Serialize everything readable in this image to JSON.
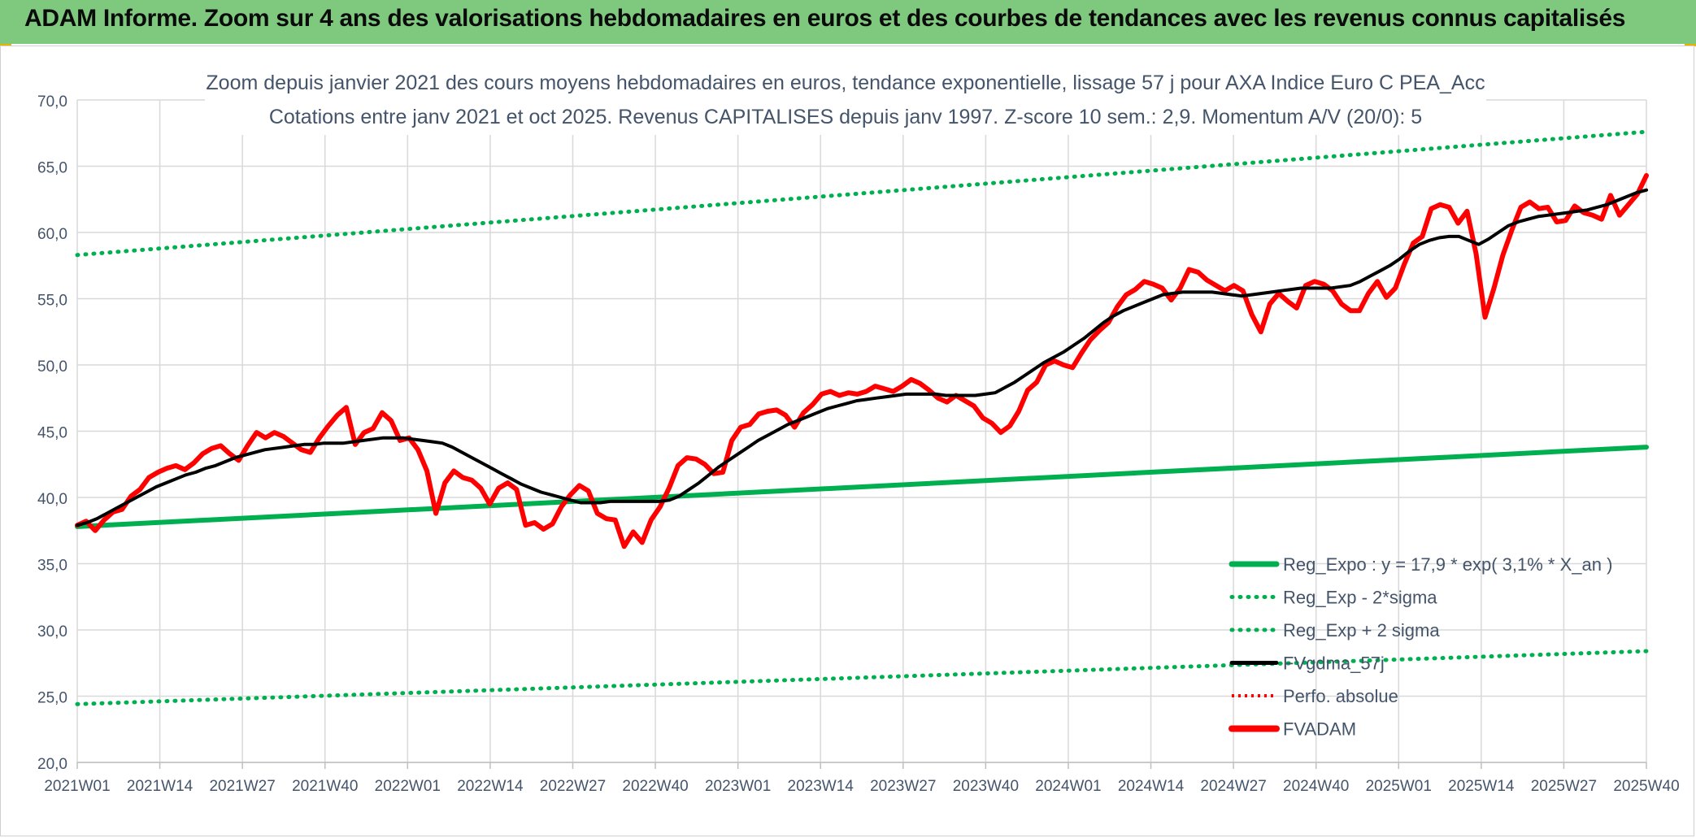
{
  "banner": {
    "title": "ADAM Informe. Zoom sur 4 ans des valorisations hebdomadaires en euros et des courbes de tendances avec les revenus connus capitalisés"
  },
  "colors": {
    "banner": "#7fc97f",
    "reg_expo": "#00b050",
    "sigma": "#00b050",
    "fvgdma": "#000000",
    "perfo": "#ff0000",
    "fvadam": "#ff0000",
    "grid": "#d9d9d9"
  },
  "chart_data": {
    "type": "line",
    "title": "Zoom depuis janvier 2021 des cours moyens hebdomadaires en euros, tendance exponentielle, lissage 57 j pour AXA Indice Euro C PEA_Acc",
    "subtitle": "Cotations entre janv 2021 et oct 2025. Revenus CAPITALISES depuis janv 1997. Z-score 10 sem.: 2,9. Momentum A/V (20/0): 5",
    "ylim": [
      20,
      70
    ],
    "yticks": [
      "70,0",
      "65,0",
      "60,0",
      "55,0",
      "50,0",
      "45,0",
      "40,0",
      "35,0",
      "30,0",
      "25,0",
      "20,0"
    ],
    "xticks": [
      "2021W01",
      "2021W14",
      "2021W27",
      "2021W40",
      "2022W01",
      "2022W14",
      "2022W27",
      "2022W40",
      "2023W01",
      "2023W14",
      "2023W27",
      "2023W40",
      "2024W01",
      "2024W14",
      "2024W27",
      "2024W40",
      "2025W01",
      "2025W14",
      "2025W27",
      "2025W40"
    ],
    "x_start": "2021W01",
    "x_end": "2025W40",
    "legend_placement": "bottom-right",
    "series": [
      {
        "name": "Reg_Expo : y = 17,9 * exp( 3,1% *  X_an )",
        "style": "solid",
        "values": [
          37.8,
          43.8
        ]
      },
      {
        "name": "Reg_Exp - 2*sigma",
        "style": "dotted",
        "values": [
          24.4,
          28.4
        ]
      },
      {
        "name": "Reg_Exp + 2 sigma",
        "style": "dotted",
        "values": [
          58.3,
          67.6
        ]
      },
      {
        "name": "FVgdma_57j",
        "style": "solid",
        "values": [
          37.9,
          38.1,
          38.4,
          38.8,
          39.2,
          39.6,
          40.0,
          40.4,
          40.8,
          41.1,
          41.4,
          41.7,
          41.9,
          42.2,
          42.4,
          42.7,
          43.0,
          43.2,
          43.4,
          43.6,
          43.7,
          43.8,
          43.9,
          44.0,
          44.0,
          44.1,
          44.1,
          44.1,
          44.2,
          44.3,
          44.4,
          44.5,
          44.5,
          44.5,
          44.4,
          44.3,
          44.2,
          44.1,
          43.8,
          43.4,
          43.0,
          42.6,
          42.2,
          41.8,
          41.4,
          41.0,
          40.7,
          40.4,
          40.2,
          40.0,
          39.8,
          39.6,
          39.6,
          39.6,
          39.7,
          39.7,
          39.7,
          39.7,
          39.7,
          39.7,
          39.8,
          40.1,
          40.6,
          41.1,
          41.7,
          42.3,
          42.8,
          43.3,
          43.8,
          44.3,
          44.7,
          45.1,
          45.5,
          45.8,
          46.1,
          46.4,
          46.7,
          46.9,
          47.1,
          47.3,
          47.4,
          47.5,
          47.6,
          47.7,
          47.8,
          47.8,
          47.8,
          47.8,
          47.7,
          47.7,
          47.7,
          47.7,
          47.8,
          47.9,
          48.3,
          48.7,
          49.2,
          49.7,
          50.2,
          50.6,
          51.0,
          51.5,
          52.0,
          52.6,
          53.2,
          53.7,
          54.1,
          54.4,
          54.7,
          55.0,
          55.3,
          55.4,
          55.5,
          55.5,
          55.5,
          55.5,
          55.4,
          55.3,
          55.2,
          55.3,
          55.4,
          55.5,
          55.6,
          55.7,
          55.8,
          55.8,
          55.8,
          55.8,
          55.9,
          56.0,
          56.3,
          56.7,
          57.1,
          57.5,
          58.0,
          58.6,
          59.1,
          59.4,
          59.6,
          59.7,
          59.7,
          59.4,
          59.1,
          59.5,
          60.0,
          60.5,
          60.8,
          61.0,
          61.2,
          61.3,
          61.4,
          61.5,
          61.6,
          61.7,
          61.9,
          62.1,
          62.4,
          62.7,
          63.0,
          63.2
        ]
      },
      {
        "name": "Perfo. absolue",
        "style": "dotted",
        "values": []
      },
      {
        "name": "FVADAM",
        "style": "solid",
        "values": [
          37.9,
          38.2,
          37.5,
          38.3,
          38.9,
          39.1,
          40.1,
          40.6,
          41.5,
          41.9,
          42.2,
          42.4,
          42.1,
          42.6,
          43.3,
          43.7,
          43.9,
          43.3,
          42.8,
          43.9,
          44.9,
          44.5,
          44.9,
          44.6,
          44.1,
          43.6,
          43.4,
          44.5,
          45.4,
          46.2,
          46.8,
          44.0,
          44.9,
          45.2,
          46.4,
          45.8,
          44.3,
          44.5,
          43.6,
          42.0,
          38.8,
          41.1,
          42.0,
          41.5,
          41.3,
          40.7,
          39.5,
          40.7,
          41.1,
          40.6,
          37.9,
          38.1,
          37.6,
          38.0,
          39.3,
          40.2,
          40.9,
          40.5,
          38.8,
          38.4,
          38.3,
          36.3,
          37.4,
          36.6,
          38.3,
          39.3,
          40.7,
          42.4,
          43.0,
          42.9,
          42.5,
          41.8,
          41.9,
          44.3,
          45.3,
          45.5,
          46.3,
          46.5,
          46.6,
          46.2,
          45.3,
          46.4,
          47.0,
          47.8,
          48.0,
          47.7,
          47.9,
          47.8,
          48.0,
          48.4,
          48.2,
          48.0,
          48.4,
          48.9,
          48.6,
          48.1,
          47.5,
          47.2,
          47.7,
          47.3,
          46.9,
          46.0,
          45.6,
          44.9,
          45.4,
          46.5,
          48.1,
          48.7,
          50.0,
          50.3,
          50.0,
          49.8,
          50.9,
          51.9,
          52.6,
          53.2,
          54.4,
          55.3,
          55.7,
          56.3,
          56.1,
          55.8,
          54.9,
          55.8,
          57.2,
          57.0,
          56.4,
          56.0,
          55.6,
          56.0,
          55.6,
          53.8,
          52.5,
          54.6,
          55.4,
          54.8,
          54.3,
          56.0,
          56.3,
          56.1,
          55.6,
          54.6,
          54.1,
          54.1,
          55.4,
          56.3,
          55.1,
          55.8,
          57.6,
          59.2,
          59.7,
          61.8,
          62.1,
          61.9,
          60.7,
          61.6,
          58.4,
          53.6,
          55.8,
          58.3,
          60.2,
          61.9,
          62.3,
          61.8,
          61.9,
          60.8,
          60.9,
          62.0,
          61.5,
          61.3,
          61.0,
          62.8,
          61.3,
          62.1,
          62.9,
          64.3
        ]
      }
    ]
  }
}
